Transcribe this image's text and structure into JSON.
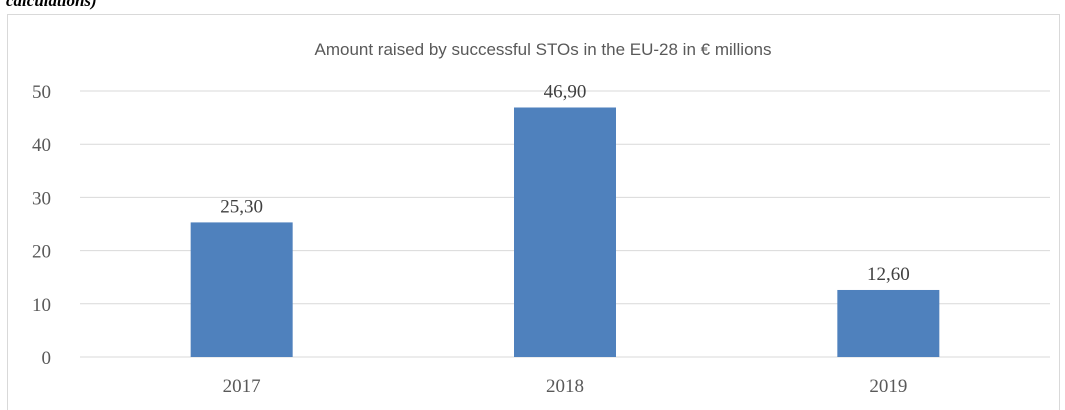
{
  "caption_fragment": "calculations)",
  "chart_data": {
    "type": "bar",
    "title": "Amount raised by successful STOs in the EU-28 in € millions",
    "xlabel": "",
    "ylabel": "",
    "categories": [
      "2017",
      "2018",
      "2019"
    ],
    "values": [
      25.3,
      46.9,
      12.6
    ],
    "data_labels": [
      "25,30",
      "46,90",
      "12,60"
    ],
    "yticks": [
      0,
      10,
      20,
      30,
      40,
      50
    ],
    "ylim": [
      0,
      50
    ],
    "grid": true,
    "legend": "none",
    "bar_color": "#4f81bd",
    "grid_color": "#d9d9d9"
  }
}
